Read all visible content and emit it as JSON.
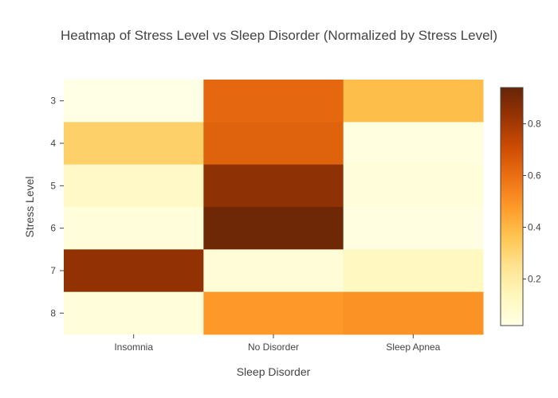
{
  "chart_data": {
    "type": "heatmap",
    "title": "Heatmap of Stress Level vs Sleep Disorder (Normalized by Stress Level)",
    "xlabel": "Sleep Disorder",
    "ylabel": "Stress Level",
    "x_categories": [
      "Insomnia",
      "No Disorder",
      "Sleep Apnea"
    ],
    "y_categories": [
      "3",
      "4",
      "5",
      "6",
      "7",
      "8"
    ],
    "values": [
      [
        0.02,
        0.62,
        0.38
      ],
      [
        0.32,
        0.64,
        0.04
      ],
      [
        0.1,
        0.85,
        0.05
      ],
      [
        0.05,
        0.92,
        0.03
      ],
      [
        0.84,
        0.06,
        0.12
      ],
      [
        0.05,
        0.48,
        0.5
      ]
    ],
    "colorscale": [
      "#ffffe5",
      "#fff7bc",
      "#fee391",
      "#fec44f",
      "#fe9929",
      "#ec7014",
      "#cc4c02",
      "#993404",
      "#662506"
    ],
    "zmin": 0.02,
    "zmax": 0.94,
    "colorbar": {
      "ticks": [
        0.2,
        0.4,
        0.6,
        0.8
      ],
      "tick_labels": [
        "0.2",
        "0.4",
        "0.6",
        "0.8"
      ]
    }
  }
}
